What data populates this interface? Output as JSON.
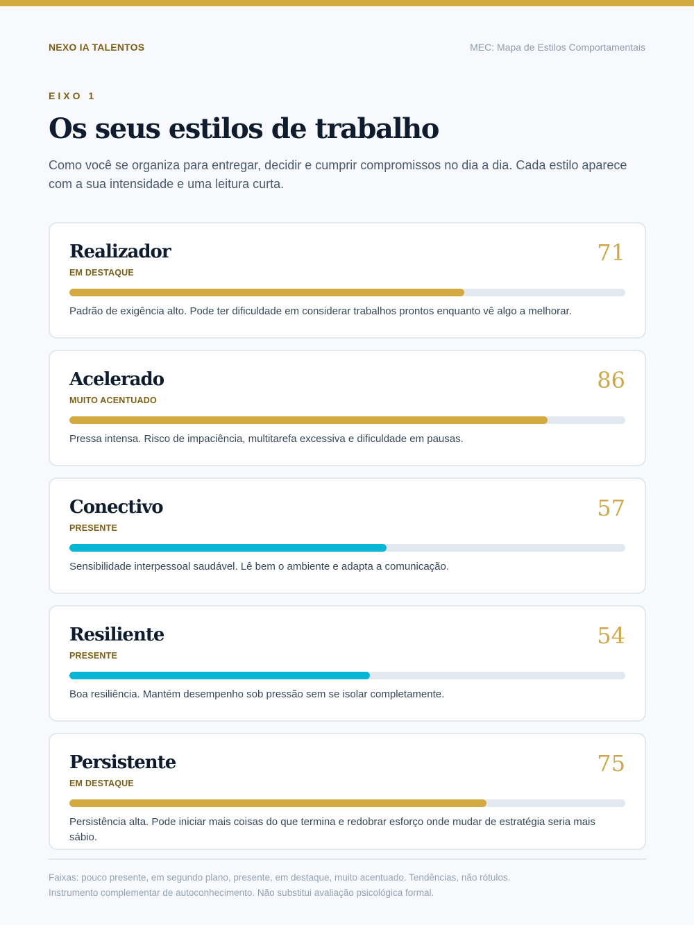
{
  "header": {
    "brand": "NEXO IA TALENTOS",
    "document_title": "MEC: Mapa de Estilos Comportamentais"
  },
  "section": {
    "eyebrow": "EIXO 1",
    "title": "Os seus estilos de trabalho",
    "intro": "Como você se organiza para entregar, decidir e cumprir compromissos no dia a dia. Cada estilo aparece com a sua intensidade e uma leitura curta."
  },
  "styles": [
    {
      "name": "Realizador",
      "score": 71,
      "band": "EM DESTAQUE",
      "bar_color": "#d4a93f",
      "description": "Padrão de exigência alto. Pode ter dificuldade em considerar trabalhos prontos enquanto vê algo a melhorar."
    },
    {
      "name": "Acelerado",
      "score": 86,
      "band": "MUITO ACENTUADO",
      "bar_color": "#d4a93f",
      "description": "Pressa intensa. Risco de impaciência, multitarefa excessiva e dificuldade em pausas."
    },
    {
      "name": "Conectivo",
      "score": 57,
      "band": "PRESENTE",
      "bar_color": "#06b6d4",
      "description": "Sensibilidade interpessoal saudável. Lê bem o ambiente e adapta a comunicação."
    },
    {
      "name": "Resiliente",
      "score": 54,
      "band": "PRESENTE",
      "bar_color": "#06b6d4",
      "description": "Boa resiliência. Mantém desempenho sob pressão sem se isolar completamente."
    },
    {
      "name": "Persistente",
      "score": 75,
      "band": "EM DESTAQUE",
      "bar_color": "#d4a93f",
      "description": "Persistência alta. Pode iniciar mais coisas do que termina e redobrar esforço onde mudar de estratégia seria mais sábio."
    }
  ],
  "footer": {
    "line1": "Faixas: pouco presente, em segundo plano, presente, em destaque, muito acentuado. Tendências, não rótulos.",
    "line2": "Instrumento complementar de autoconhecimento. Não substitui avaliação psicológica formal."
  }
}
